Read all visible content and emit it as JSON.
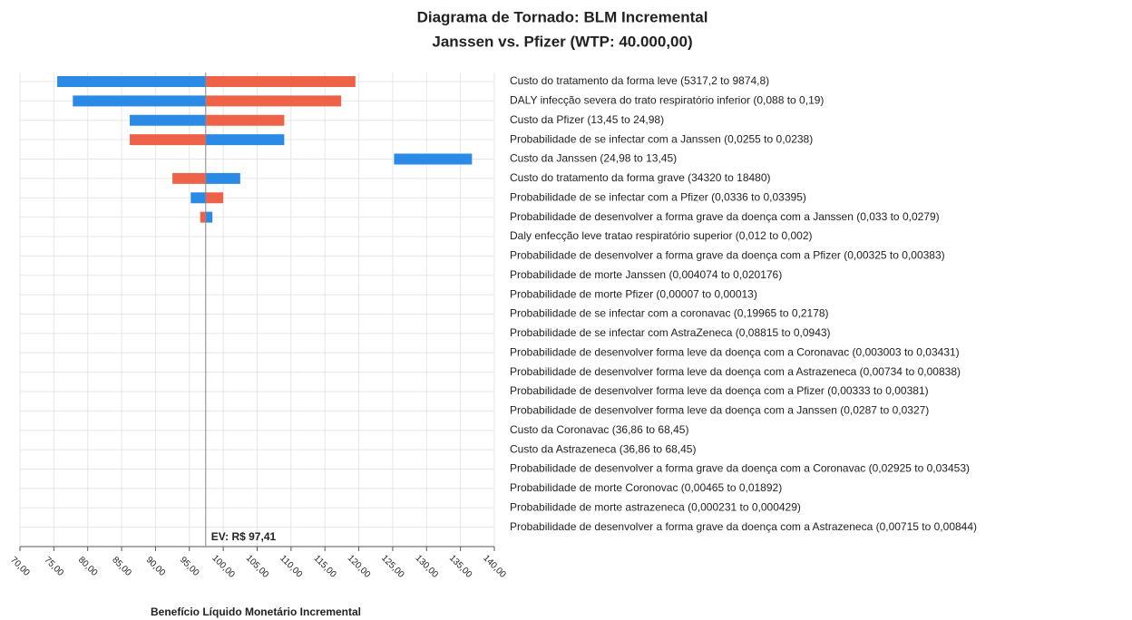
{
  "chart_data": {
    "type": "tornado",
    "title": "Diagrama de Tornado: BLM Incremental",
    "subtitle": "Janssen vs. Pfizer (WTP: 40.000,00)",
    "xlabel": "Benefício Líquido Monetário Incremental",
    "xlim": [
      70,
      140
    ],
    "xticks": [
      {
        "value": 70,
        "label": "70,00"
      },
      {
        "value": 75,
        "label": "75,00"
      },
      {
        "value": 80,
        "label": "80,00"
      },
      {
        "value": 85,
        "label": "85,00"
      },
      {
        "value": 90,
        "label": "90,00"
      },
      {
        "value": 95,
        "label": "95,00"
      },
      {
        "value": 100,
        "label": "100,00"
      },
      {
        "value": 105,
        "label": "105,00"
      },
      {
        "value": 110,
        "label": "110,00"
      },
      {
        "value": 115,
        "label": "115,00"
      },
      {
        "value": 120,
        "label": "120,00"
      },
      {
        "value": 125,
        "label": "125,00"
      },
      {
        "value": 130,
        "label": "130,00"
      },
      {
        "value": 135,
        "label": "135,00"
      },
      {
        "value": 140,
        "label": "140,00"
      }
    ],
    "grid": true,
    "ev": 97.41,
    "ev_label": "EV: R$ 97,41",
    "rows": [
      {
        "label": "Custo do tratamento da forma leve (5317,2 to 9874,8)",
        "segments": [
          {
            "from": 75.5,
            "to": 97.41,
            "color": "#2b8ae6"
          },
          {
            "from": 97.41,
            "to": 119.5,
            "color": "#ee6347"
          }
        ]
      },
      {
        "label": "DALY infecção severa do trato respiratório inferior (0,088 to 0,19)",
        "segments": [
          {
            "from": 77.8,
            "to": 97.41,
            "color": "#2b8ae6"
          },
          {
            "from": 97.41,
            "to": 117.4,
            "color": "#ee6347"
          }
        ]
      },
      {
        "label": "Custo da Pfizer (13,45 to 24,98)",
        "segments": [
          {
            "from": 86.2,
            "to": 97.41,
            "color": "#2b8ae6"
          },
          {
            "from": 97.41,
            "to": 109.0,
            "color": "#ee6347"
          }
        ]
      },
      {
        "label": "Probabilidade de se infectar com a Janssen (0,0255 to 0,0238)",
        "segments": [
          {
            "from": 86.2,
            "to": 97.41,
            "color": "#ee6347"
          },
          {
            "from": 97.41,
            "to": 109.0,
            "color": "#2b8ae6"
          }
        ]
      },
      {
        "label": "Custo da Janssen (24,98 to 13,45)",
        "segments": [
          {
            "from": 125.2,
            "to": 136.7,
            "color": "#2b8ae6"
          }
        ]
      },
      {
        "label": "Custo do tratamento da forma grave (34320 to 18480)",
        "segments": [
          {
            "from": 92.5,
            "to": 97.41,
            "color": "#ee6347"
          },
          {
            "from": 97.41,
            "to": 102.5,
            "color": "#2b8ae6"
          }
        ]
      },
      {
        "label": "Probabilidade de se infectar com a Pfizer (0,0336 to 0,03395)",
        "segments": [
          {
            "from": 95.2,
            "to": 97.41,
            "color": "#2b8ae6"
          },
          {
            "from": 97.41,
            "to": 100.0,
            "color": "#ee6347"
          }
        ]
      },
      {
        "label": "Probabilidade de desenvolver a forma grave da doença com a Janssen (0,033 to 0,0279)",
        "segments": [
          {
            "from": 96.6,
            "to": 97.41,
            "color": "#ee6347"
          },
          {
            "from": 97.41,
            "to": 98.4,
            "color": "#2b8ae6"
          }
        ]
      },
      {
        "label": "Daly enfecção leve tratao respiratório superior (0,012 to 0,002)",
        "segments": []
      },
      {
        "label": "Probabilidade de desenvolver a forma grave da doença com a Pfizer (0,00325 to 0,00383)",
        "segments": []
      },
      {
        "label": "Probabilidade de morte Janssen (0,004074 to 0,020176)",
        "segments": []
      },
      {
        "label": "Probabilidade de morte Pfizer (0,00007 to 0,00013)",
        "segments": []
      },
      {
        "label": "Probabilidade de se infectar com a coronavac (0,19965 to 0,2178)",
        "segments": []
      },
      {
        "label": "Probabilidade de se infectar com AstraZeneca (0,08815 to 0,0943)",
        "segments": []
      },
      {
        "label": "Probabilidade de desenvolver forma leve da doença com a Coronavac (0,003003 to 0,03431)",
        "segments": []
      },
      {
        "label": "Probabilidade de desenvolver forma leve da doença com a Astrazeneca (0,00734 to 0,00838)",
        "segments": []
      },
      {
        "label": "Probabilidade de desenvolver forma leve da doença com a Pfizer (0,00333 to 0,00381)",
        "segments": []
      },
      {
        "label": "Probabilidade de desenvolver forma leve da doença com a Janssen (0,0287 to 0,0327)",
        "segments": []
      },
      {
        "label": "Custo da Coronavac (36,86 to 68,45)",
        "segments": []
      },
      {
        "label": "Custo da Astrazeneca (36,86 to 68,45)",
        "segments": []
      },
      {
        "label": "Probabilidade de desenvolver a forma grave da doença com a Coronavac (0,02925 to 0,03453)",
        "segments": []
      },
      {
        "label": "Probabilidade de morte Coronovac (0,00465 to 0,01892)",
        "segments": []
      },
      {
        "label": "Probabilidade de morte astrazeneca (0,000231 to 0,000429)",
        "segments": []
      },
      {
        "label": "Probabilidade de desenvolver a forma grave da doença com a Astrazeneca (0,00715 to 0,00844)",
        "segments": []
      }
    ]
  }
}
